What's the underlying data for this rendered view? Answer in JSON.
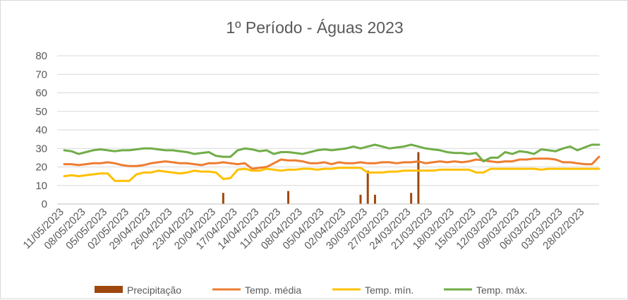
{
  "chart_data": {
    "type": "line",
    "title": "1º Período - Águas 2023",
    "xlabel": "",
    "ylabel": "",
    "ylim": [
      0,
      80
    ],
    "yticks": [
      "0",
      "10",
      "20",
      "30",
      "40",
      "50",
      "60",
      "70",
      "80"
    ],
    "grid": true,
    "legend_position": "bottom",
    "x_tick_labels": [
      "11/05/2023",
      "08/05/2023",
      "05/05/2023",
      "02/05/2023",
      "29/04/2023",
      "26/04/2023",
      "23/04/2023",
      "20/04/2023",
      "17/04/2023",
      "14/04/2023",
      "11/04/2023",
      "08/04/2023",
      "05/04/2023",
      "02/04/2023",
      "30/03/2023",
      "27/03/2023",
      "24/03/2023",
      "21/03/2023",
      "18/03/2023",
      "15/03/2023",
      "12/03/2023",
      "09/03/2023",
      "06/03/2023",
      "03/03/2023",
      "28/02/2023"
    ],
    "x_tick_step": 3,
    "point_count": 75,
    "series": [
      {
        "name": "Precipitação",
        "kind": "bar",
        "color": "#9e480e",
        "values": [
          0,
          0,
          0,
          0,
          0,
          0,
          0,
          0,
          0,
          0,
          0,
          0,
          0,
          0,
          0,
          0,
          0,
          0,
          0,
          0,
          0,
          0,
          6,
          0,
          0,
          0,
          0,
          0,
          0,
          0,
          0,
          7,
          0,
          0,
          0,
          0,
          0,
          0,
          0,
          0,
          0,
          5,
          18,
          5,
          0,
          0,
          0,
          0,
          6,
          28,
          0,
          0,
          0,
          0,
          0,
          0,
          0,
          0,
          0,
          0,
          0,
          0,
          0,
          0,
          0,
          0,
          0,
          0,
          0,
          0,
          0,
          0,
          0,
          0,
          0
        ]
      },
      {
        "name": "Temp. média",
        "kind": "line",
        "color": "#ed7d31",
        "values": [
          21.5,
          21.5,
          21,
          21.5,
          22,
          22,
          22.5,
          22,
          21,
          20.5,
          20.5,
          21,
          22,
          22.5,
          23,
          22.5,
          22,
          22,
          21.5,
          21,
          22,
          22,
          22.5,
          22,
          21.5,
          22,
          19,
          19.5,
          20,
          22,
          24,
          23.5,
          23.5,
          23,
          22,
          22,
          22.5,
          21.5,
          22.5,
          22,
          22,
          22.5,
          22,
          22,
          22.5,
          22.5,
          22,
          22.5,
          22.5,
          23,
          22,
          22.5,
          23,
          22.5,
          23,
          22.5,
          23,
          24,
          23.5,
          23,
          22.5,
          23,
          23,
          24,
          24,
          24.5,
          24.5,
          24.5,
          24,
          22.5,
          22.5,
          22,
          21.5,
          21.5,
          25.5
        ]
      },
      {
        "name": "Temp. mín.",
        "kind": "line",
        "color": "#ffc000",
        "values": [
          15,
          15.5,
          15,
          15.5,
          16,
          16.5,
          16.5,
          12.5,
          12.5,
          12.5,
          16,
          17,
          17,
          18,
          17.5,
          17,
          16.5,
          17,
          18,
          17.5,
          17.5,
          17,
          13.5,
          14,
          18.5,
          19,
          18,
          18,
          19,
          18.5,
          18,
          18.5,
          18.5,
          19,
          19,
          18.5,
          19,
          19,
          19.5,
          19.5,
          19.5,
          19.5,
          17,
          17,
          17,
          17.5,
          17.5,
          18,
          18,
          18,
          18,
          18,
          18.5,
          18.5,
          18.5,
          18.5,
          18.5,
          17,
          17,
          19,
          19,
          19,
          19,
          19,
          19,
          19,
          18.5,
          19,
          19,
          19,
          19,
          19,
          19,
          19,
          19
        ]
      },
      {
        "name": "Temp. máx.",
        "kind": "line",
        "color": "#70ad47",
        "values": [
          29,
          28.5,
          27,
          28,
          29,
          29.5,
          29,
          28.5,
          29,
          29,
          29.5,
          30,
          30,
          29.5,
          29,
          29,
          28.5,
          28,
          27,
          27.5,
          28,
          26,
          25.5,
          25.5,
          29,
          30,
          29.5,
          28.5,
          29,
          27,
          28,
          28,
          27.5,
          27,
          28,
          29,
          29.5,
          29,
          29.5,
          30,
          31,
          30,
          31,
          32,
          31,
          30,
          30.5,
          31,
          32,
          31,
          30,
          29.5,
          29,
          28,
          27.5,
          27.5,
          27,
          27.5,
          23,
          25,
          25,
          28,
          27,
          28.5,
          28,
          27,
          29.5,
          29,
          28.5,
          30,
          31,
          29,
          30.5,
          32,
          32
        ]
      }
    ]
  }
}
